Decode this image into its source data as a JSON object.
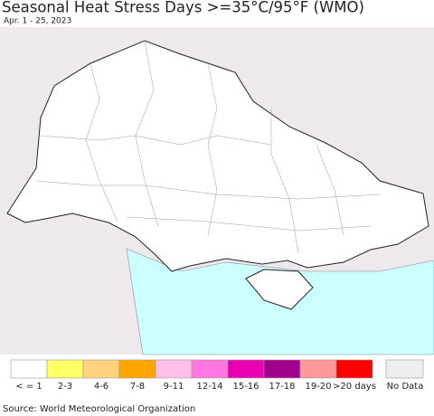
{
  "header": {
    "title": "Seasonal Heat Stress Days >=35°C/95°F (WMO)",
    "subtitle": "Apr. 1 - 25, 2023"
  },
  "legend": {
    "items": [
      {
        "label": "< = 1",
        "color": "#ffffff"
      },
      {
        "label": "2-3",
        "color": "#ffff66"
      },
      {
        "label": "4-6",
        "color": "#ffd27f"
      },
      {
        "label": "7-8",
        "color": "#ffa500"
      },
      {
        "label": "9-11",
        "color": "#ffc0e8"
      },
      {
        "label": "12-14",
        "color": "#ff77e0"
      },
      {
        "label": "15-16",
        "color": "#e800b0"
      },
      {
        "label": "17-18",
        "color": "#a0008c"
      },
      {
        "label": "19-20",
        "color": "#ff9999"
      },
      {
        "label": ">20 days",
        "color": "#ff0000"
      }
    ],
    "no_data": {
      "label": "No Data",
      "color": "#f0edf0"
    }
  },
  "footer": {
    "source": "Source: World Meteorological Organization"
  }
}
